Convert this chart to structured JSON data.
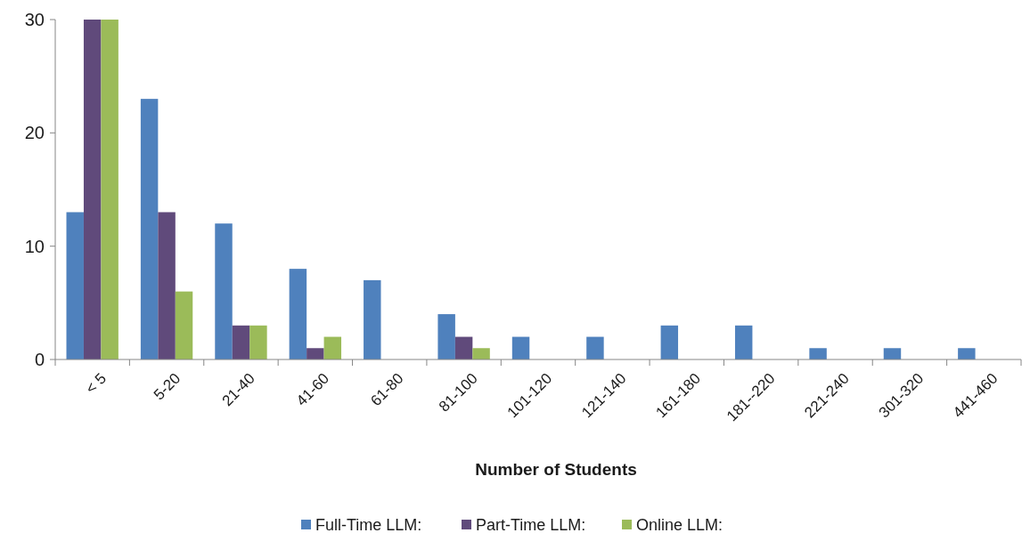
{
  "chart_data": {
    "type": "bar",
    "xlabel": "Number of Students",
    "categories": [
      "< 5",
      "5-20",
      "21-40",
      "41-60",
      "61-80",
      "81-100",
      "101-120",
      "121-140",
      "161-180",
      "181--220",
      "221-240",
      "301-320",
      "441-460"
    ],
    "series": [
      {
        "name": "Full-Time LLM:",
        "color": "#4f81bd",
        "values": [
          13,
          23,
          12,
          8,
          7,
          4,
          2,
          2,
          3,
          3,
          1,
          1,
          1
        ]
      },
      {
        "name": "Part-Time LLM:",
        "color": "#604a7b",
        "values": [
          30,
          13,
          3,
          1,
          0,
          2,
          0,
          0,
          0,
          0,
          0,
          0,
          0
        ]
      },
      {
        "name": "Online LLM:",
        "color": "#9bbb59",
        "values": [
          30,
          6,
          3,
          2,
          0,
          1,
          0,
          0,
          0,
          0,
          0,
          0,
          0
        ]
      }
    ],
    "ylim": [
      0,
      30
    ],
    "yticks": [
      0,
      10,
      20,
      30
    ],
    "grid": false,
    "legend": "bottom"
  }
}
